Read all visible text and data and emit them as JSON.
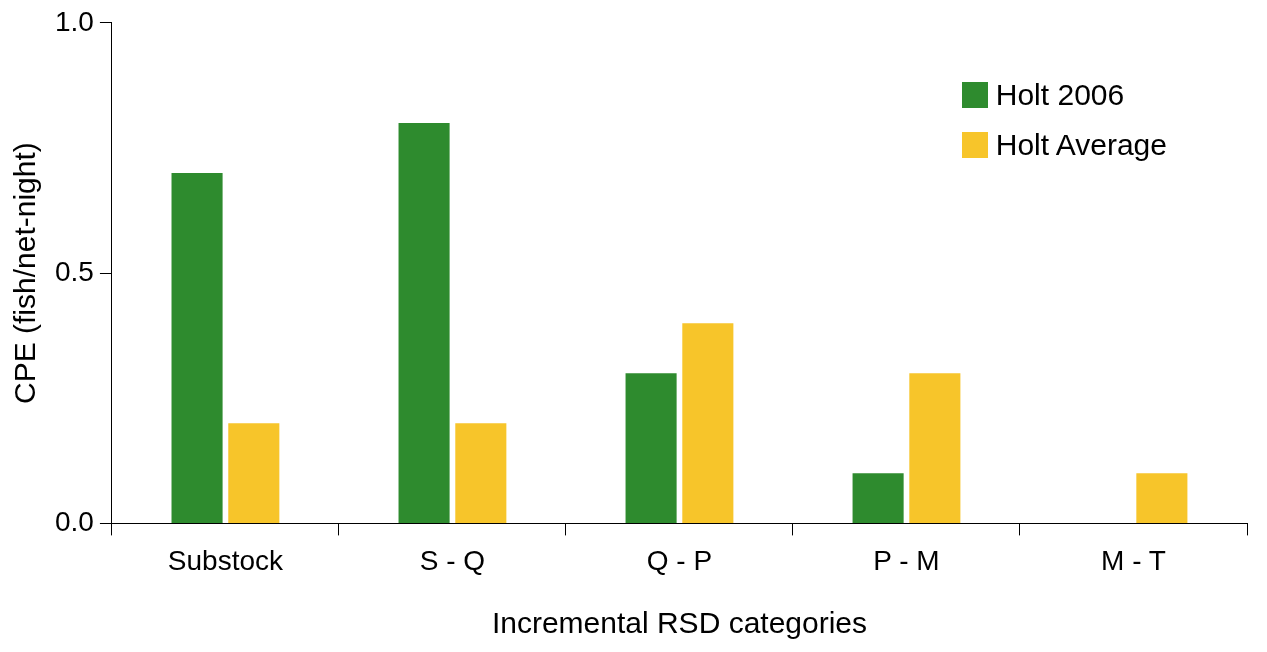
{
  "chart_data": {
    "type": "bar",
    "xlabel": "Incremental RSD categories",
    "ylabel": "CPE (fish/net-night)",
    "categories": [
      "Substock",
      "S - Q",
      "Q - P",
      "P - M",
      "M - T"
    ],
    "series": [
      {
        "name": "Holt 2006",
        "color": "#2e8b2e",
        "values": [
          0.7,
          0.8,
          0.3,
          0.1,
          0
        ]
      },
      {
        "name": "Holt Average",
        "color": "#f7c52a",
        "values": [
          0.2,
          0.2,
          0.4,
          0.3,
          0.1
        ]
      }
    ],
    "ylim": [
      0,
      1
    ],
    "yticks": [
      {
        "value": 0,
        "label": "0.0"
      },
      {
        "value": 0.5,
        "label": "0.5"
      },
      {
        "value": 1,
        "label": "1.0"
      }
    ],
    "grid": false,
    "legend": "top right"
  }
}
